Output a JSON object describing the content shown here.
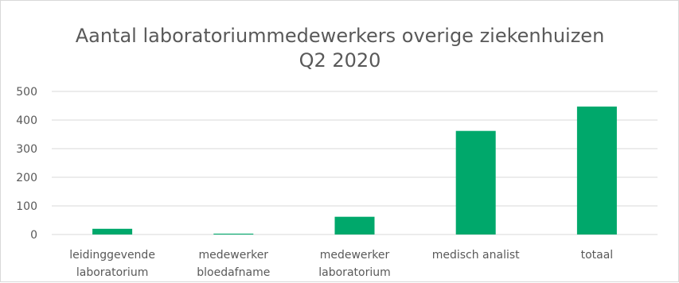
{
  "chart_data": {
    "type": "bar",
    "title_lines": [
      "Aantal laboratoriummedewerkers overige ziekenhuizen",
      "Q2 2020"
    ],
    "categories": [
      [
        "leidinggevende",
        "laboratorium"
      ],
      [
        "medewerker",
        "bloedafname"
      ],
      [
        "medewerker",
        "laboratorium"
      ],
      [
        "medisch analist"
      ],
      [
        "totaal"
      ]
    ],
    "values": [
      20,
      3,
      62,
      362,
      447
    ],
    "ylim": [
      0,
      500
    ],
    "yticks": [
      0,
      100,
      200,
      300,
      400,
      500
    ],
    "grid": true,
    "bar_color": "#00a86b",
    "grid_color": "#d9d9d9"
  }
}
